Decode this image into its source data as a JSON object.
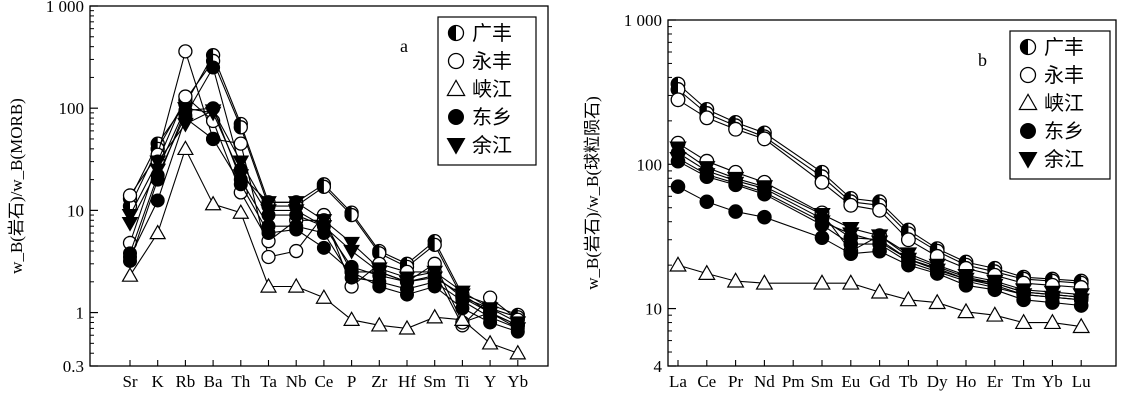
{
  "chart_data": [
    {
      "panel": "a",
      "type": "line",
      "ylabel": "w_B(岩石)/w_B(MORB)",
      "yscale": "log",
      "ylim": [
        0.3,
        1000
      ],
      "ytick_labels": [
        "1 000",
        "100",
        "10",
        "1",
        "0.3"
      ],
      "categories": [
        "Sr",
        "K",
        "Rb",
        "Ba",
        "Th",
        "Ta",
        "Nb",
        "Ce",
        "P",
        "Zr",
        "Hf",
        "Sm",
        "Ti",
        "Y",
        "Yb"
      ],
      "legend": [
        {
          "label": "广丰",
          "marker": "half-circle"
        },
        {
          "label": "永丰",
          "marker": "open-circle"
        },
        {
          "label": "峡江",
          "marker": "open-triangle"
        },
        {
          "label": "东乡",
          "marker": "filled-circle"
        },
        {
          "label": "余江",
          "marker": "filled-triangle-down"
        }
      ],
      "series": [
        {
          "group": "广丰",
          "marker": "half-circle",
          "values": [
            13,
            45,
            110,
            330,
            70,
            12,
            12,
            18,
            9.5,
            4,
            3,
            5,
            1.5,
            1.2,
            0.95
          ]
        },
        {
          "group": "广丰",
          "marker": "half-circle",
          "values": [
            11,
            40,
            120,
            290,
            65,
            11,
            11,
            17,
            9,
            3.8,
            2.8,
            4.6,
            1.4,
            1.1,
            0.9
          ]
        },
        {
          "group": "永丰",
          "marker": "open-circle",
          "values": [
            14,
            35,
            360,
            50,
            45,
            3.5,
            4,
            9,
            1.8,
            3,
            2.5,
            2.5,
            0.75,
            1.4,
            0.85
          ]
        },
        {
          "group": "永丰",
          "marker": "open-circle",
          "values": [
            4.8,
            30,
            130,
            75,
            15,
            5,
            8,
            8,
            2.5,
            2.5,
            2,
            3,
            0.8,
            1,
            0.75
          ]
        },
        {
          "group": "峡江",
          "marker": "open-triangle",
          "values": [
            2.3,
            6,
            40,
            11.5,
            9.5,
            1.8,
            1.8,
            1.4,
            0.85,
            0.75,
            0.7,
            0.9,
            0.85,
            0.5,
            0.4
          ]
        },
        {
          "group": "东乡",
          "marker": "filled-circle",
          "values": [
            3.5,
            12.5,
            80,
            50,
            18,
            6,
            6.5,
            4.3,
            2.5,
            1.8,
            1.5,
            1.8,
            1.1,
            0.8,
            0.65
          ]
        },
        {
          "group": "东乡",
          "marker": "filled-circle",
          "values": [
            3.2,
            20,
            95,
            100,
            20,
            7,
            7,
            6,
            2.2,
            2,
            1.7,
            2,
            1.3,
            0.9,
            0.7
          ]
        },
        {
          "group": "东乡",
          "marker": "filled-circle",
          "values": [
            3.8,
            22,
            85,
            250,
            25,
            9,
            9,
            7,
            2.8,
            2.3,
            2,
            2.3,
            1.4,
            1,
            0.75
          ]
        },
        {
          "group": "余江",
          "marker": "filled-triangle-down",
          "values": [
            7.5,
            25,
            100,
            90,
            22,
            12,
            12,
            8,
            4.8,
            2.7,
            2.2,
            2.5,
            1.6,
            1.1,
            0.8
          ]
        },
        {
          "group": "余江",
          "marker": "filled-triangle-down",
          "values": [
            9,
            30,
            70,
            95,
            30,
            10,
            10,
            7,
            4,
            2.5,
            2,
            2.2,
            1.5,
            1,
            0.7
          ]
        }
      ]
    },
    {
      "panel": "b",
      "type": "line",
      "ylabel": "w_B(岩石)/w_B(球粒陨石)",
      "yscale": "log",
      "ylim": [
        4,
        1000
      ],
      "ytick_labels": [
        "1 000",
        "100",
        "10",
        "4"
      ],
      "categories": [
        "La",
        "Ce",
        "Pr",
        "Nd",
        "Pm",
        "Sm",
        "Eu",
        "Gd",
        "Tb",
        "Dy",
        "Ho",
        "Er",
        "Tm",
        "Yb",
        "Lu"
      ],
      "omitted_points": [
        "Pm"
      ],
      "legend": [
        {
          "label": "广丰",
          "marker": "half-circle"
        },
        {
          "label": "永丰",
          "marker": "open-circle"
        },
        {
          "label": "峡江",
          "marker": "open-triangle"
        },
        {
          "label": "东乡",
          "marker": "filled-circle"
        },
        {
          "label": "余江",
          "marker": "filled-triangle-down"
        }
      ],
      "series": [
        {
          "group": "广丰",
          "marker": "half-circle",
          "values": [
            360,
            240,
            195,
            165,
            null,
            88,
            58,
            55,
            35,
            26,
            21,
            19,
            16.5,
            16,
            15.5
          ]
        },
        {
          "group": "广丰",
          "marker": "half-circle",
          "values": [
            330,
            225,
            185,
            155,
            null,
            82,
            55,
            52,
            33,
            25,
            20,
            18,
            16,
            15.5,
            15
          ]
        },
        {
          "group": "永丰",
          "marker": "open-circle",
          "values": [
            280,
            210,
            175,
            150,
            null,
            75,
            52,
            48,
            30,
            23,
            19,
            17,
            15,
            14.5,
            14
          ]
        },
        {
          "group": "永丰",
          "marker": "open-circle",
          "values": [
            140,
            105,
            88,
            75,
            null,
            46,
            25,
            32,
            23,
            19.5,
            16.5,
            15,
            13,
            12.5,
            12
          ]
        },
        {
          "group": "峡江",
          "marker": "open-triangle",
          "values": [
            20,
            17.5,
            15.5,
            15,
            null,
            15,
            15,
            13,
            11.5,
            11,
            9.5,
            9,
            8,
            8,
            7.5
          ]
        },
        {
          "group": "东乡",
          "marker": "filled-circle",
          "values": [
            70,
            55,
            47,
            43,
            null,
            31,
            24,
            25,
            20,
            17.5,
            14.5,
            13.5,
            11.5,
            11,
            10.5
          ]
        },
        {
          "group": "东乡",
          "marker": "filled-circle",
          "values": [
            120,
            90,
            77,
            68,
            null,
            42,
            31,
            30,
            22,
            19,
            16,
            15,
            13,
            12.5,
            12
          ]
        },
        {
          "group": "东乡",
          "marker": "filled-circle",
          "values": [
            105,
            82,
            72,
            62,
            null,
            38,
            28,
            28,
            21,
            18,
            15.5,
            14,
            12.5,
            12,
            11.5
          ]
        },
        {
          "group": "余江",
          "marker": "filled-triangle-down",
          "values": [
            130,
            95,
            80,
            70,
            null,
            45,
            36,
            32,
            24,
            20,
            17,
            15.5,
            13.5,
            13,
            12.5
          ]
        },
        {
          "group": "余江",
          "marker": "filled-triangle-down",
          "values": [
            110,
            85,
            74,
            64,
            null,
            40,
            33,
            29,
            22,
            18.5,
            16,
            14.5,
            12.5,
            12,
            11.5
          ]
        }
      ]
    }
  ]
}
